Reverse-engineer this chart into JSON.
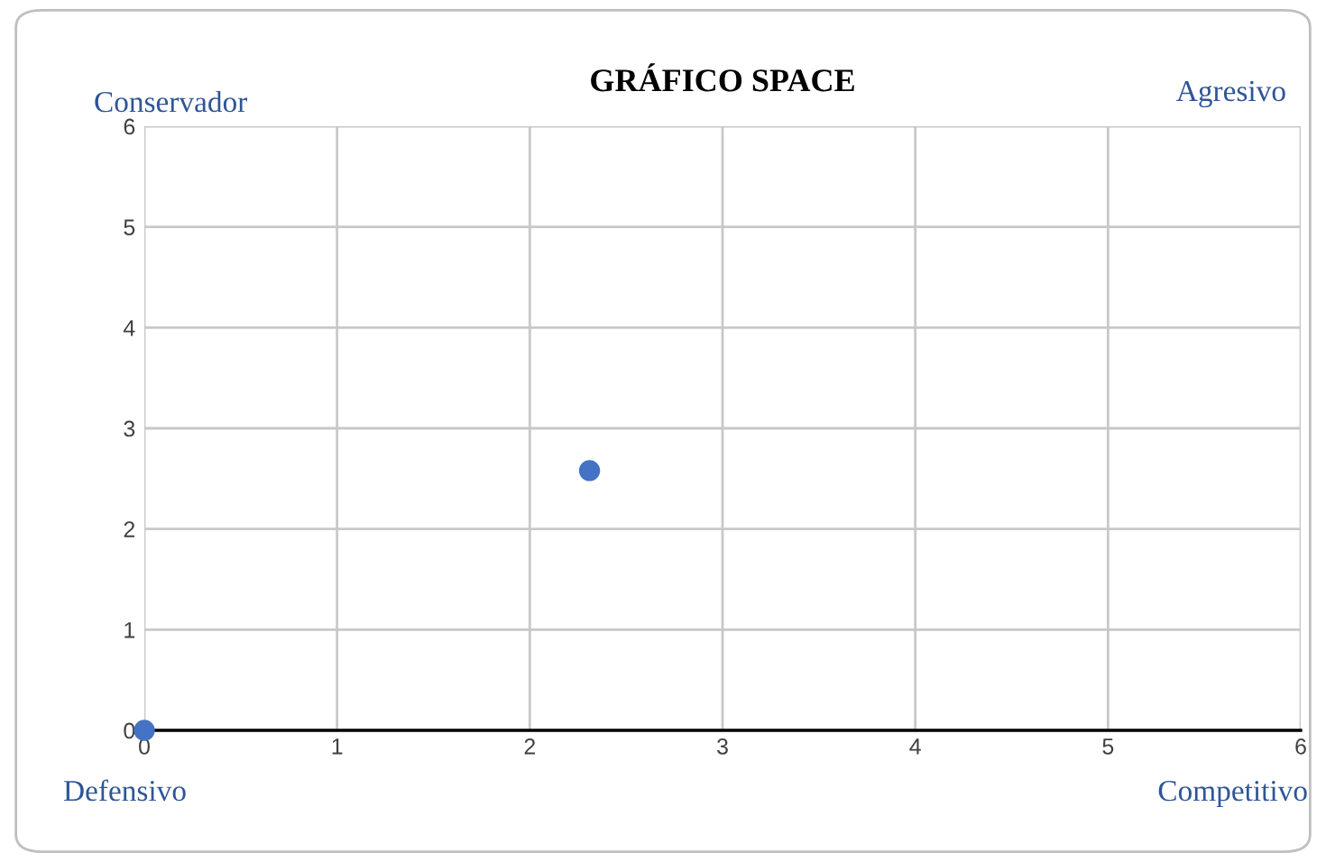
{
  "chart_data": {
    "type": "scatter",
    "title": "GRÁFICO SPACE",
    "x": [
      0,
      2.31
    ],
    "values": [
      0,
      2.58
    ],
    "color": "#4472c4",
    "marker": "circle",
    "xlim": [
      0,
      6
    ],
    "ylim": [
      0,
      6
    ],
    "xticks": [
      0,
      1,
      2,
      3,
      4,
      5,
      6
    ],
    "yticks": [
      0,
      1,
      2,
      3,
      4,
      5,
      6
    ],
    "grid": true,
    "annotations": [
      "Conservador",
      "Agresivo",
      "Defensivo",
      "Competitivo"
    ]
  }
}
